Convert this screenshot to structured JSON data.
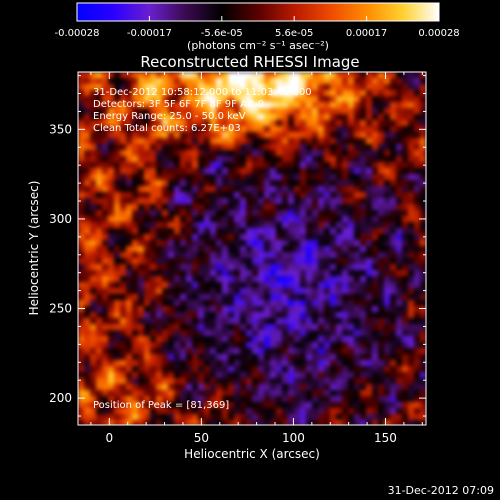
{
  "chart_data": {
    "type": "heatmap",
    "title": "Reconstructed RHESSI Image",
    "xlabel": "Heliocentric X (arcsec)",
    "ylabel": "Heliocentric Y (arcsec)",
    "xlim": [
      -17,
      172
    ],
    "ylim": [
      185,
      382
    ],
    "x_ticks": [
      0,
      50,
      100,
      150
    ],
    "y_ticks": [
      200,
      250,
      300,
      350
    ],
    "colorbar": {
      "min": -0.00028,
      "max": 0.00028,
      "tick_labels": [
        "-0.00028",
        "-0.00017",
        "-5.6e-05",
        "5.6e-05",
        "0.00017",
        "0.00028"
      ],
      "unit_label": "(photons cm⁻² s⁻¹ asec⁻²)",
      "colors": [
        "#0000ff",
        "#2a00ff",
        "#6a1fd0",
        "#3a0a50",
        "#000000",
        "#5a0000",
        "#b81a00",
        "#ee4a00",
        "#ff8c00",
        "#ffd030",
        "#ffffff"
      ]
    },
    "annotations": [
      "31-Dec-2012 10:58:12.000 to 11:03:42.000",
      "Detectors: 3F 5F 6F 7F 8F 9F  Att 0",
      "Energy Range: 25.0 - 50.0 keV",
      "Clean    Total counts: 6.27E+03"
    ],
    "peak_label": "Position of Peak = [81,369]",
    "peak": [
      81,
      369
    ]
  },
  "footer": {
    "timestamp": "31-Dec-2012 07:09"
  }
}
